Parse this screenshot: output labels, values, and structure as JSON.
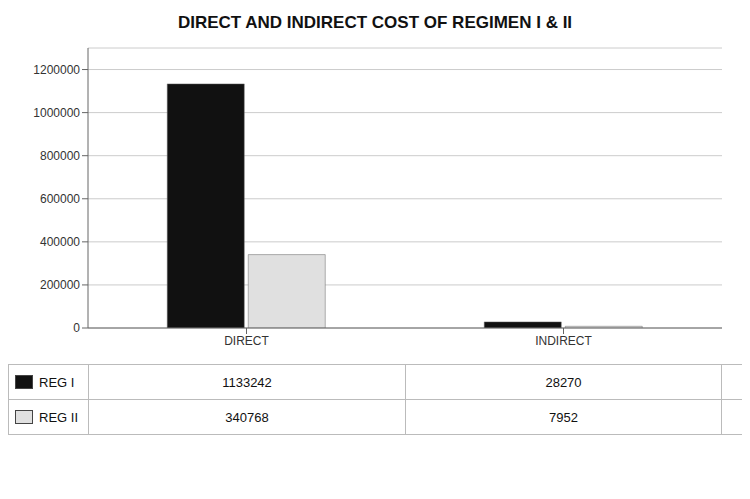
{
  "chart_data": {
    "type": "bar",
    "title": "DIRECT AND INDIRECT COST OF REGIMEN I & II",
    "categories": [
      "DIRECT",
      "INDIRECT"
    ],
    "series": [
      {
        "name": "REG I",
        "color": "#111111",
        "values": [
          1133242,
          28270
        ]
      },
      {
        "name": "REG II",
        "color": "#e0e0e0",
        "values": [
          340768,
          7952
        ]
      }
    ],
    "ylim": [
      0,
      1300000
    ],
    "yticks": [
      0,
      200000,
      400000,
      600000,
      800000,
      1000000,
      1200000
    ],
    "grid": true,
    "legend": "bottom",
    "data_labels": true
  }
}
